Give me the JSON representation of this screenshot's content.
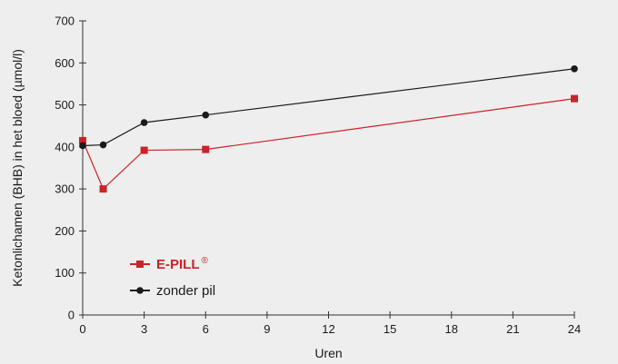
{
  "chart_data": {
    "type": "line",
    "title": "",
    "xlabel": "Uren",
    "ylabel": "Ketonlichamen (BHB) in het bloed (µmol/l)",
    "xlim": [
      0,
      24
    ],
    "ylim": [
      0,
      700
    ],
    "x_ticks": [
      0,
      3,
      6,
      9,
      12,
      15,
      18,
      21,
      24
    ],
    "y_ticks": [
      0,
      100,
      200,
      300,
      400,
      500,
      600,
      700
    ],
    "grid": false,
    "legend_position": "bottom-left",
    "series": [
      {
        "name": "E-PILL",
        "name_mark": "®",
        "color": "#cc2229",
        "marker": "square",
        "points": [
          {
            "x": 0,
            "y": 415
          },
          {
            "x": 1,
            "y": 300
          },
          {
            "x": 3,
            "y": 392
          },
          {
            "x": 6,
            "y": 394
          },
          {
            "x": 24,
            "y": 515
          }
        ]
      },
      {
        "name": "zonder pil",
        "color": "#1a1a1a",
        "marker": "circle",
        "points": [
          {
            "x": 0,
            "y": 403
          },
          {
            "x": 1,
            "y": 405
          },
          {
            "x": 3,
            "y": 458
          },
          {
            "x": 6,
            "y": 476
          },
          {
            "x": 24,
            "y": 586
          }
        ]
      }
    ]
  }
}
